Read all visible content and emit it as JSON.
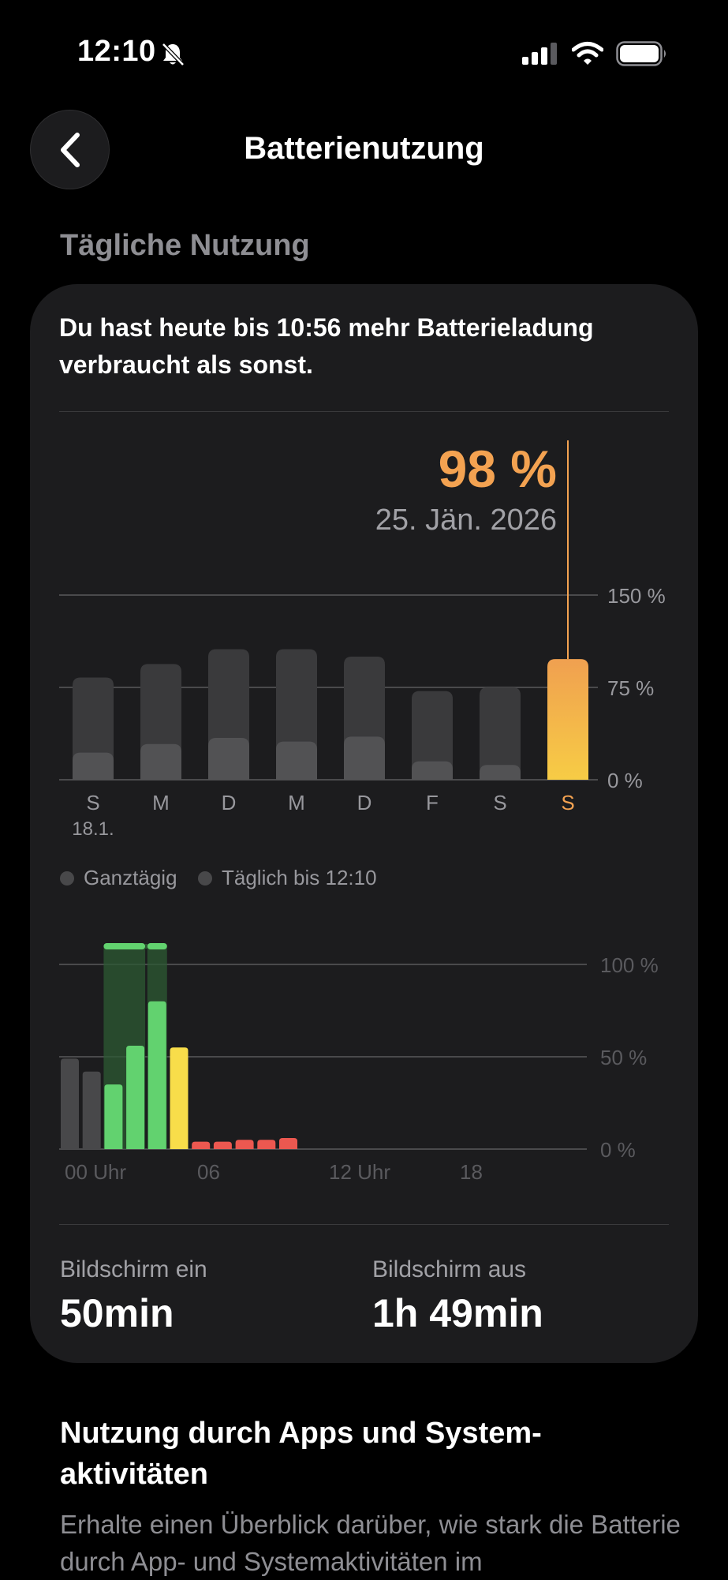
{
  "status_bar": {
    "time": "12:10",
    "icons": [
      "bell-slash-icon",
      "cellular-signal-icon",
      "wifi-icon",
      "battery-icon"
    ]
  },
  "nav": {
    "back_icon": "chevron-left-icon",
    "title": "Batterienutzung"
  },
  "section_label": "Tägliche Nutzung",
  "card": {
    "headline": "Du hast heute bis 10:56 mehr Batterieladung verbraucht als sonst.",
    "selected_value": "98 %",
    "selected_date": "25. Jän. 2026",
    "legend": [
      {
        "label": "Ganztägig"
      },
      {
        "label": "Täglich bis 12:10"
      }
    ],
    "screen_on_label": "Bildschirm ein",
    "screen_on_value": "50min",
    "screen_off_label": "Bildschirm aus",
    "screen_off_value": "1h 49min"
  },
  "colors": {
    "accent": "#F3A251",
    "highlight_bar_top": "#F0A050",
    "highlight_bar_bottom": "#F7CC45",
    "bar_dark": "#3A3A3C",
    "bar_light": "#525254",
    "green": "#62D26F",
    "yellow": "#F8DD4A",
    "red": "#EC5850"
  },
  "chart_data": [
    {
      "type": "bar",
      "categories": [
        "S",
        "M",
        "D",
        "M",
        "D",
        "F",
        "S",
        "S"
      ],
      "category_sublabels": [
        "18.1.",
        "",
        "",
        "",
        "",
        "",
        "",
        ""
      ],
      "series": [
        {
          "name": "Ganztägig",
          "values": [
            83,
            94,
            106,
            106,
            100,
            72,
            75,
            98
          ]
        },
        {
          "name": "Täglich bis 12:10",
          "values": [
            22,
            29,
            34,
            31,
            35,
            15,
            12,
            98
          ]
        }
      ],
      "selected_index": 7,
      "y_ticks": [
        "150 %",
        "75 %",
        "0 %"
      ],
      "y_tick_values": [
        150,
        75,
        0
      ],
      "ylim": [
        0,
        150
      ]
    },
    {
      "type": "bar",
      "x_ticks": [
        "00 Uhr",
        "06",
        "12 Uhr",
        "18"
      ],
      "y_ticks": [
        "100 %",
        "50 %",
        "0 %"
      ],
      "y_tick_values": [
        100,
        50,
        0
      ],
      "ylim": [
        0,
        100
      ],
      "bars": [
        {
          "slot": 0,
          "value": 49,
          "status": "idle"
        },
        {
          "slot": 1,
          "value": 42,
          "status": "idle"
        },
        {
          "slot": 2,
          "value": 35,
          "status": "charging"
        },
        {
          "slot": 3,
          "value": 56,
          "status": "charging"
        },
        {
          "slot": 4,
          "value": 80,
          "status": "charging"
        },
        {
          "slot": 5,
          "value": 55,
          "status": "low-power"
        },
        {
          "slot": 6,
          "value": 4,
          "status": "low"
        },
        {
          "slot": 7,
          "value": 4,
          "status": "low"
        },
        {
          "slot": 8,
          "value": 5,
          "status": "low"
        },
        {
          "slot": 9,
          "value": 5,
          "status": "low"
        },
        {
          "slot": 10,
          "value": 6,
          "status": "low"
        }
      ],
      "charging_periods": [
        {
          "start_slot": 2,
          "end_slot": 3
        },
        {
          "start_slot": 4,
          "end_slot": 4
        }
      ]
    }
  ],
  "bottom": {
    "title": "Nutzung durch Apps und System-aktivitäten",
    "description": "Erhalte einen Überblick darüber, wie stark die Batterie durch App- und Systemaktivitäten im"
  }
}
